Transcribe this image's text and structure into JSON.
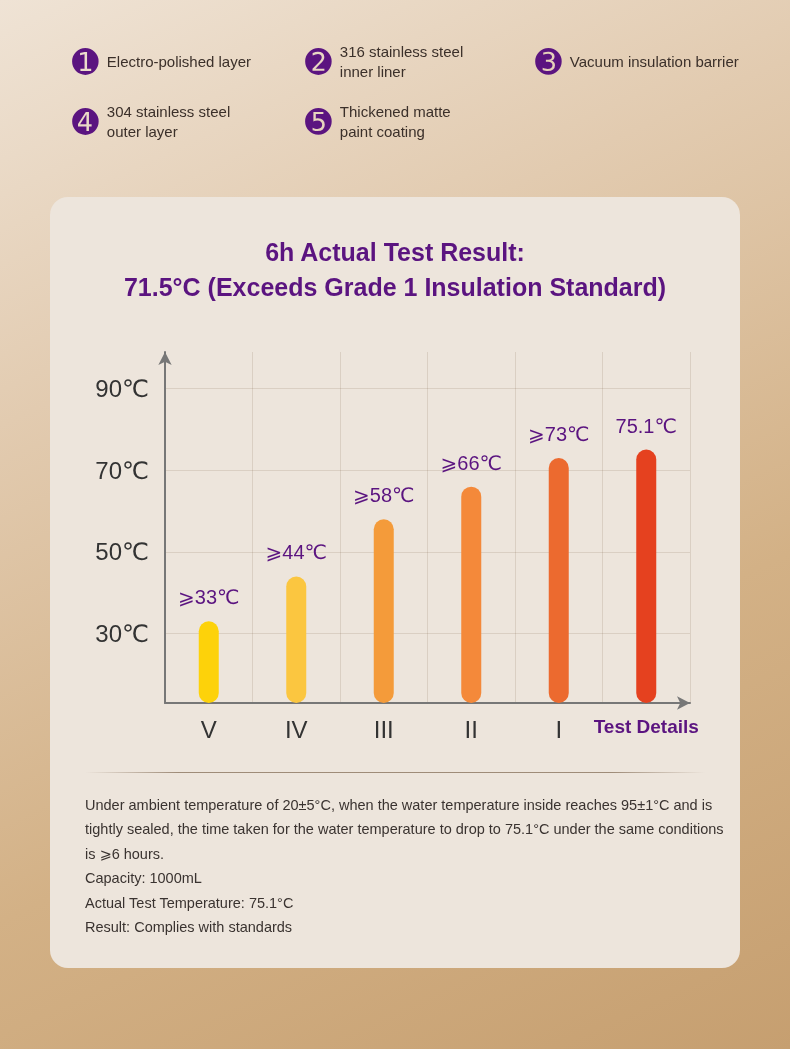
{
  "chart_data": {
    "type": "bar",
    "title": "6h Actual Test Result:",
    "subtitle": "71.5°C (Exceeds Grade 1 Insulation Standard)",
    "categories": [
      "V",
      "IV",
      "III",
      "II",
      "I",
      "Test Details"
    ],
    "values": [
      33,
      44,
      58,
      66,
      73,
      75.1
    ],
    "colors": [
      "#fdd20a",
      "#fbc640",
      "#f49b3a",
      "#f4893a",
      "#ec6a2f",
      "#e5411f"
    ],
    "value_labels": [
      "⩾33℃",
      "⩾44℃",
      "⩾58℃",
      "⩾66℃",
      "⩾73℃",
      "75.1℃"
    ],
    "ylim": [
      13,
      99
    ],
    "yticks": [
      {
        "value": 30,
        "label": "30℃"
      },
      {
        "value": 50,
        "label": "50℃"
      },
      {
        "value": 70,
        "label": "70℃"
      },
      {
        "value": 90,
        "label": "90℃"
      }
    ],
    "grid": true,
    "annotations": [
      "➊ Electro-polished layer",
      "➋ 316 stainless steel inner liner",
      "➌ Vacuum insulation barrier",
      "➍ 304 stainless steel outer layer",
      "➎ Thickened matte paint coating",
      "Under ambient temperature of 20±5°C, when the water temperature inside reaches 95±1°C and is tightly sealed, the time taken for the water temperature to drop to 75.1°C under the same conditions is ⩾6 hours.",
      "Capacity: 1000mL",
      "Actual Test Temperature: 75.1°C",
      "Result: Complies with standards"
    ]
  }
}
